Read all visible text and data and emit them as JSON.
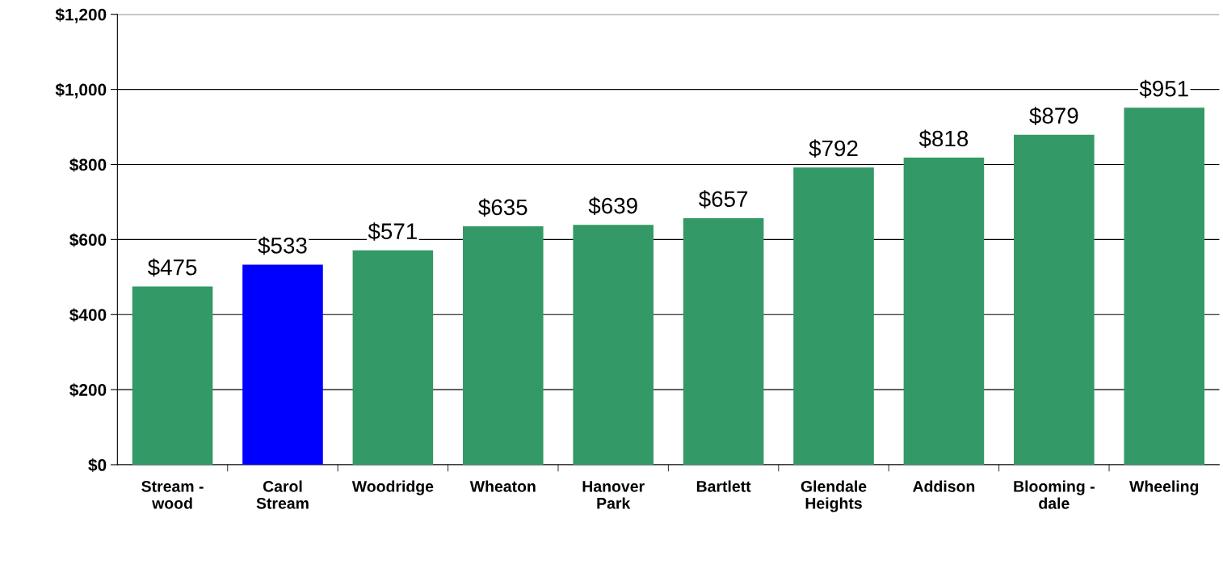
{
  "chart_data": {
    "type": "bar",
    "categories": [
      "Stream -\nwood",
      "Carol\nStream",
      "Woodridge",
      "Wheaton",
      "Hanover\nPark",
      "Bartlett",
      "Glendale\nHeights",
      "Addison",
      "Blooming -\ndale",
      "Wheeling"
    ],
    "values": [
      475,
      533,
      571,
      635,
      639,
      657,
      792,
      818,
      879,
      951
    ],
    "colors": [
      "#339966",
      "#0000ff",
      "#339966",
      "#339966",
      "#339966",
      "#339966",
      "#339966",
      "#339966",
      "#339966",
      "#339966"
    ],
    "value_labels": [
      "$475",
      "$533",
      "$571",
      "$635",
      "$639",
      "$657",
      "$792",
      "$818",
      "$879",
      "$951"
    ],
    "ylim": [
      0,
      1200
    ],
    "yticks": [
      {
        "value": 0,
        "label": "$0"
      },
      {
        "value": 200,
        "label": "$200"
      },
      {
        "value": 400,
        "label": "$400"
      },
      {
        "value": 600,
        "label": "$600"
      },
      {
        "value": 800,
        "label": "$800"
      },
      {
        "value": 1000,
        "label": "$1,000"
      },
      {
        "value": 1200,
        "label": "$1,200"
      }
    ],
    "grid": "y",
    "legend": false
  }
}
